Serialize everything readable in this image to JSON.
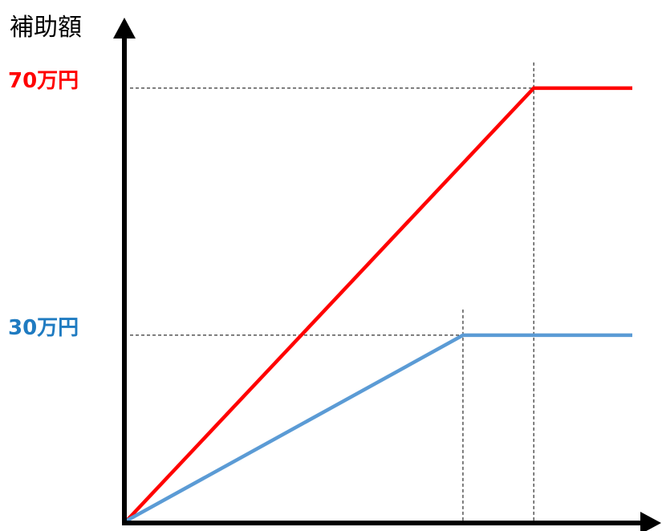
{
  "chart_data": {
    "type": "line",
    "ylabel": "補助額",
    "xlabel": "",
    "xlim": [
      0,
      1
    ],
    "ylim": [
      0,
      76.6
    ],
    "yticks": [
      {
        "value": 30,
        "label": "30万円",
        "color": "#1f7bc1"
      },
      {
        "value": 70,
        "label": "70万円",
        "color": "#ff0000"
      }
    ],
    "series": [
      {
        "color": "#ff0000",
        "x": [
          0,
          0.805,
          1
        ],
        "y": [
          0,
          70,
          70
        ]
      },
      {
        "color": "#5b9bd5",
        "x": [
          0,
          0.665,
          1
        ],
        "y": [
          0,
          30,
          30
        ]
      }
    ],
    "guides": [
      {
        "type": "horizontal",
        "y": 70,
        "x_end": 0.805
      },
      {
        "type": "horizontal",
        "y": 30,
        "x_end": 0.665
      },
      {
        "type": "vertical",
        "x": 0.805
      },
      {
        "type": "vertical",
        "x": 0.665
      }
    ],
    "grid": false,
    "legend": "none"
  },
  "colors": {
    "axis": "#000000",
    "guide": "#000000"
  }
}
